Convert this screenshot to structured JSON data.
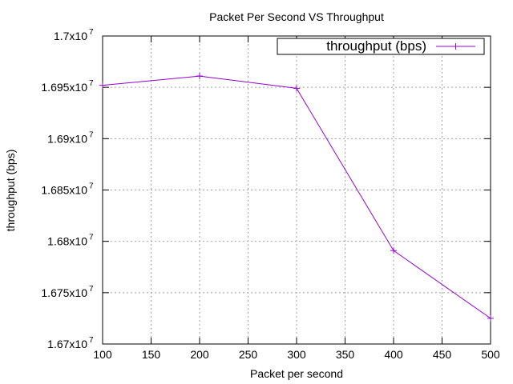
{
  "chart_data": {
    "type": "line",
    "title": "Packet Per Second VS Throughput",
    "xlabel": "Packet per second",
    "ylabel": "throughput (bps)",
    "xlim": [
      100,
      500
    ],
    "ylim": [
      16700000,
      17000000
    ],
    "xticks": [
      "100",
      "150",
      "200",
      "250",
      "300",
      "350",
      "400",
      "450",
      "500"
    ],
    "yticks": [
      {
        "value": 16700000,
        "mantissa": "1.67x10",
        "exp": "7"
      },
      {
        "value": 16750000,
        "mantissa": "1.675x10",
        "exp": "7"
      },
      {
        "value": 16800000,
        "mantissa": "1.68x10",
        "exp": "7"
      },
      {
        "value": 16850000,
        "mantissa": "1.685x10",
        "exp": "7"
      },
      {
        "value": 16900000,
        "mantissa": "1.69x10",
        "exp": "7"
      },
      {
        "value": 16950000,
        "mantissa": "1.695x10",
        "exp": "7"
      },
      {
        "value": 17000000,
        "mantissa": "1.7x10",
        "exp": "7"
      }
    ],
    "grid": true,
    "legend_position": "top-right",
    "series": [
      {
        "name": "throughput (bps)",
        "color": "#9400d3",
        "marker": "plus",
        "x": [
          100,
          200,
          300,
          400,
          500
        ],
        "y": [
          16952000,
          16961000,
          16949000,
          16791000,
          16725000
        ]
      }
    ]
  }
}
